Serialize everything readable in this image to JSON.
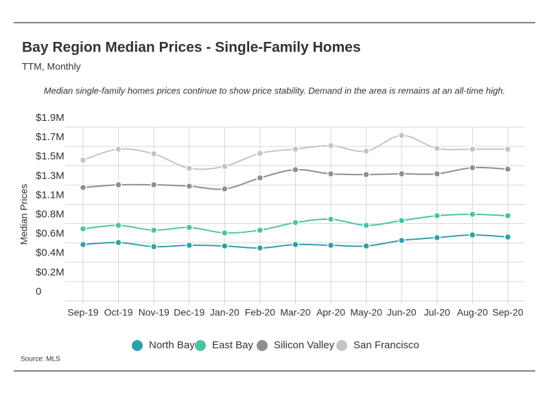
{
  "chart_data": {
    "type": "line",
    "title": "Bay Region Median Prices - Single-Family Homes",
    "subtitle": "TTM, Monthly",
    "annotation": "Median single-family homes prices continue to show price stability. Demand in the area is remains at an all-time high.",
    "y_label": "Median Prices",
    "source": "Source:  MLS",
    "categories": [
      "Sep-19",
      "Oct-19",
      "Nov-19",
      "Dec-19",
      "Jan-20",
      "Feb-20",
      "Mar-20",
      "Apr-20",
      "May-20",
      "Jun-20",
      "Jul-20",
      "Aug-20",
      "Sep-20"
    ],
    "series": [
      {
        "name": "North Bay",
        "color": "#2fa0ab",
        "values": [
          616000,
          638000,
          593000,
          608000,
          600000,
          578000,
          616000,
          608000,
          600000,
          661000,
          691000,
          721000,
          698000
        ]
      },
      {
        "name": "East Bay",
        "color": "#4cc1a8",
        "values": [
          788000,
          826000,
          773000,
          803000,
          743000,
          773000,
          856000,
          893000,
          826000,
          878000,
          931000,
          946000,
          931000
        ]
      },
      {
        "name": "Silicon Valley",
        "color": "#8f8f8f",
        "values": [
          1239000,
          1269000,
          1269000,
          1254000,
          1224000,
          1344000,
          1434000,
          1389000,
          1381000,
          1389000,
          1389000,
          1456000,
          1441000
        ]
      },
      {
        "name": "San Francisco",
        "color": "#c4c4c4",
        "values": [
          1539000,
          1659000,
          1607000,
          1449000,
          1471000,
          1614000,
          1659000,
          1697000,
          1637000,
          1809000,
          1667000,
          1659000,
          1659000
        ]
      }
    ],
    "ylim": [
      0,
      1900000
    ],
    "yticks": [
      0,
      {
        "value": 211111,
        "label": "$0.2M"
      },
      {
        "value": 422222,
        "label": "$0.4M"
      },
      {
        "value": 633333,
        "label": "$0.6M"
      },
      {
        "value": 844444,
        "label": "$0.8M"
      },
      {
        "value": 1055556,
        "label": "$1.1M"
      },
      {
        "value": 1266667,
        "label": "$1.3M"
      },
      {
        "value": 1477778,
        "label": "$1.5M"
      },
      {
        "value": 1688889,
        "label": "$1.7M"
      },
      {
        "value": 1900000,
        "label": "$1.9M"
      }
    ],
    "grid": true
  }
}
